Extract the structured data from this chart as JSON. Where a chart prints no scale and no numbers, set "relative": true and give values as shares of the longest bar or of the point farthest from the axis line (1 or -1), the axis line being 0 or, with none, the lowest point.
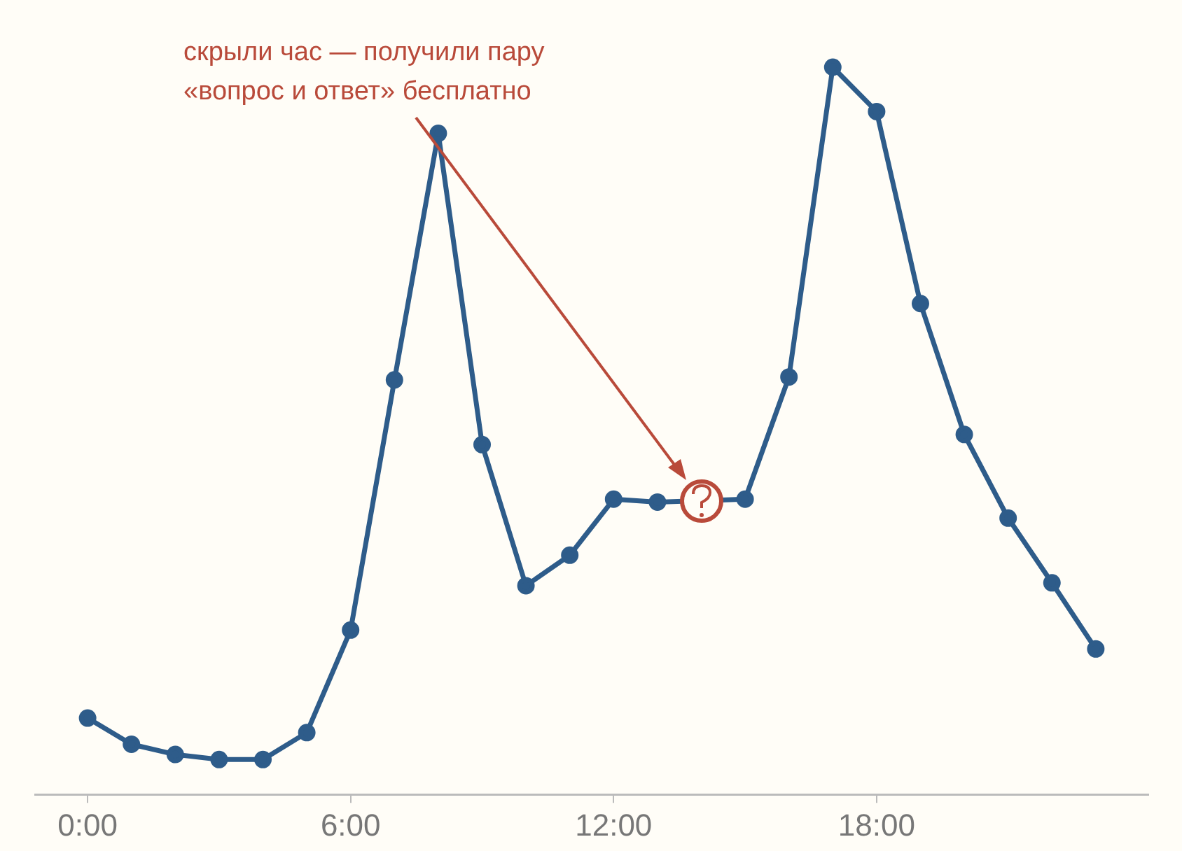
{
  "chart_data": {
    "type": "line",
    "relative": true,
    "x": [
      0,
      1,
      2,
      3,
      4,
      5,
      6,
      7,
      8,
      9,
      10,
      11,
      12,
      13,
      14,
      15,
      16,
      17,
      18,
      19,
      20,
      21,
      22,
      23
    ],
    "series": [
      {
        "color": "#2e5c8a",
        "values": [
          0.105,
          0.069,
          0.055,
          0.048,
          0.048,
          0.085,
          0.226,
          0.57,
          0.909,
          0.481,
          0.287,
          0.329,
          0.406,
          0.402,
          null,
          0.406,
          0.574,
          1,
          0.939,
          0.675,
          0.495,
          0.38,
          0.291,
          0.2
        ]
      }
    ],
    "xlim": [
      -1.2,
      24.2
    ],
    "xticks": [
      {
        "value": 0,
        "label": "0:00"
      },
      {
        "value": 6,
        "label": "6:00"
      },
      {
        "value": 12,
        "label": "12:00"
      },
      {
        "value": 18,
        "label": "18:00"
      }
    ],
    "marker": "circle",
    "line_style": "solid",
    "grid": false,
    "legend": false,
    "annotations": [
      "скрыли час — получили пару «вопрос и ответ» бесплатно"
    ]
  }
}
